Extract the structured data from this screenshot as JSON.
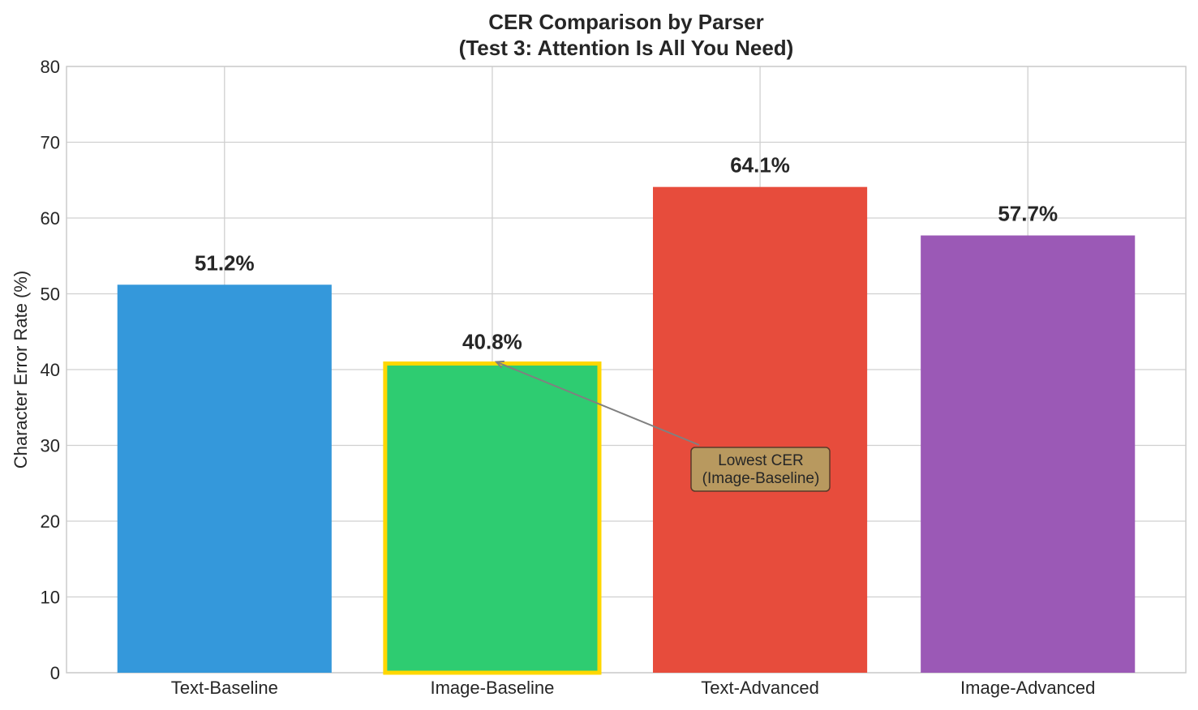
{
  "chart_data": {
    "type": "bar",
    "title": "CER Comparison by Parser",
    "subtitle": "(Test 3: Attention Is All You Need)",
    "xlabel": "",
    "ylabel": "Character Error Rate (%)",
    "ylim": [
      0,
      80
    ],
    "yticks": [
      0,
      10,
      20,
      30,
      40,
      50,
      60,
      70,
      80
    ],
    "grid": true,
    "categories": [
      "Text-Baseline",
      "Image-Baseline",
      "Text-Advanced",
      "Image-Advanced"
    ],
    "values": [
      51.2,
      40.8,
      64.1,
      57.7
    ],
    "data_labels": [
      "51.2%",
      "40.8%",
      "64.1%",
      "57.7%"
    ],
    "colors": [
      "#3498db",
      "#2ecc71",
      "#e74c3c",
      "#9b59b6"
    ],
    "highlight": {
      "category": "Image-Baseline",
      "edge_color": "#ffd700"
    },
    "annotation": {
      "lines": [
        "Lowest CER",
        "(Image-Baseline)"
      ],
      "target_category": "Image-Baseline",
      "target_value": 40.8,
      "text_y": 27,
      "box_color": "#b8995f"
    }
  }
}
